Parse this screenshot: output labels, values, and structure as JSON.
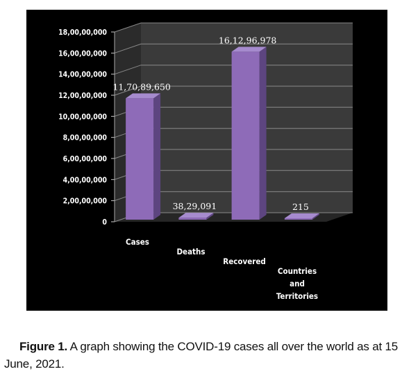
{
  "chart_data": {
    "type": "bar",
    "categories": [
      "Cases",
      "Deaths",
      "Recovered",
      "Countries and Territories"
    ],
    "category_lines": [
      [
        "Cases"
      ],
      [
        "Deaths"
      ],
      [
        "Recovered"
      ],
      [
        "Countries",
        "and",
        "Territories"
      ]
    ],
    "values": [
      117089650,
      3829091,
      161296978,
      215
    ],
    "data_labels": [
      "11,70,89,650",
      "38,29,091",
      "16,12,96,978",
      "215"
    ],
    "ylim": [
      0,
      180000000
    ],
    "yticks": [
      0,
      20000000,
      40000000,
      60000000,
      80000000,
      100000000,
      120000000,
      140000000,
      160000000,
      180000000
    ],
    "ytick_labels": [
      "0",
      "2,00,00,000",
      "4,00,00,000",
      "6,00,00,000",
      "8,00,00,000",
      "10,00,00,000",
      "12,00,00,000",
      "14,00,00,000",
      "16,00,00,000",
      "18,00,00,000"
    ],
    "grid": true,
    "style": "3d-column",
    "bar_color": "#8E6BB8",
    "background_color": "#000000",
    "wall_color": "#3a3a3a"
  },
  "caption": {
    "figure_label": "Figure 1.",
    "text": " A graph showing the COVID-19 cases all over the world as at 15 June, 2021."
  }
}
